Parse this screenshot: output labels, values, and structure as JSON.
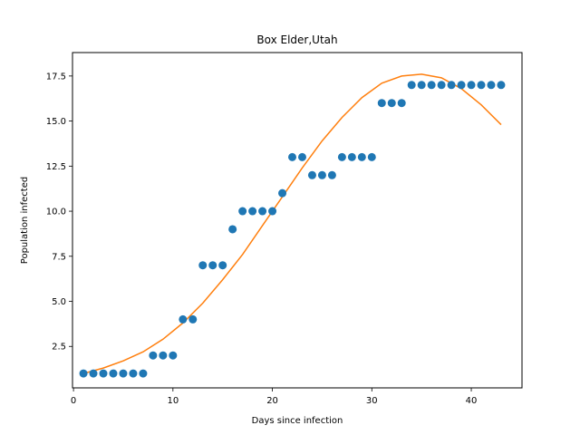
{
  "chart_data": {
    "type": "scatter",
    "title": "Box Elder,Utah",
    "xlabel": "Days since infection",
    "ylabel": "Population infected",
    "xlim": [
      -0.1,
      45.1
    ],
    "ylim": [
      0.2,
      18.8
    ],
    "xticks": [
      0,
      10,
      20,
      30,
      40
    ],
    "xtick_labels": [
      "0",
      "10",
      "20",
      "30",
      "40"
    ],
    "yticks": [
      2.5,
      5.0,
      7.5,
      10.0,
      12.5,
      15.0,
      17.5
    ],
    "ytick_labels": [
      "2.5",
      "5.0",
      "7.5",
      "10.0",
      "12.5",
      "15.0",
      "17.5"
    ],
    "grid": false,
    "series": [
      {
        "kind": "scatter",
        "color": "#1f77b4",
        "x": [
          1,
          2,
          3,
          4,
          5,
          6,
          7,
          8,
          9,
          10,
          11,
          12,
          13,
          14,
          15,
          16,
          17,
          18,
          19,
          20,
          21,
          22,
          23,
          24,
          25,
          26,
          27,
          28,
          29,
          30,
          31,
          32,
          33,
          34,
          35,
          36,
          37,
          38,
          39,
          40,
          41,
          42,
          43
        ],
        "y": [
          1,
          1,
          1,
          1,
          1,
          1,
          1,
          2,
          2,
          2,
          4,
          4,
          7,
          7,
          7,
          9,
          10,
          10,
          10,
          10,
          11,
          13,
          13,
          12,
          12,
          12,
          13,
          13,
          13,
          13,
          16,
          16,
          16,
          17,
          17,
          17,
          17,
          17,
          17,
          17,
          17,
          17,
          17
        ]
      },
      {
        "kind": "line",
        "color": "#ff7f0e",
        "x": [
          1,
          3,
          5,
          7,
          9,
          11,
          13,
          15,
          17,
          19,
          21,
          23,
          25,
          27,
          29,
          31,
          33,
          35,
          37,
          39,
          41,
          43
        ],
        "y": [
          1.0,
          1.3,
          1.7,
          2.2,
          2.9,
          3.8,
          4.9,
          6.2,
          7.6,
          9.2,
          10.8,
          12.4,
          13.9,
          15.2,
          16.3,
          17.1,
          17.5,
          17.6,
          17.4,
          16.8,
          15.9,
          14.8
        ]
      }
    ]
  }
}
